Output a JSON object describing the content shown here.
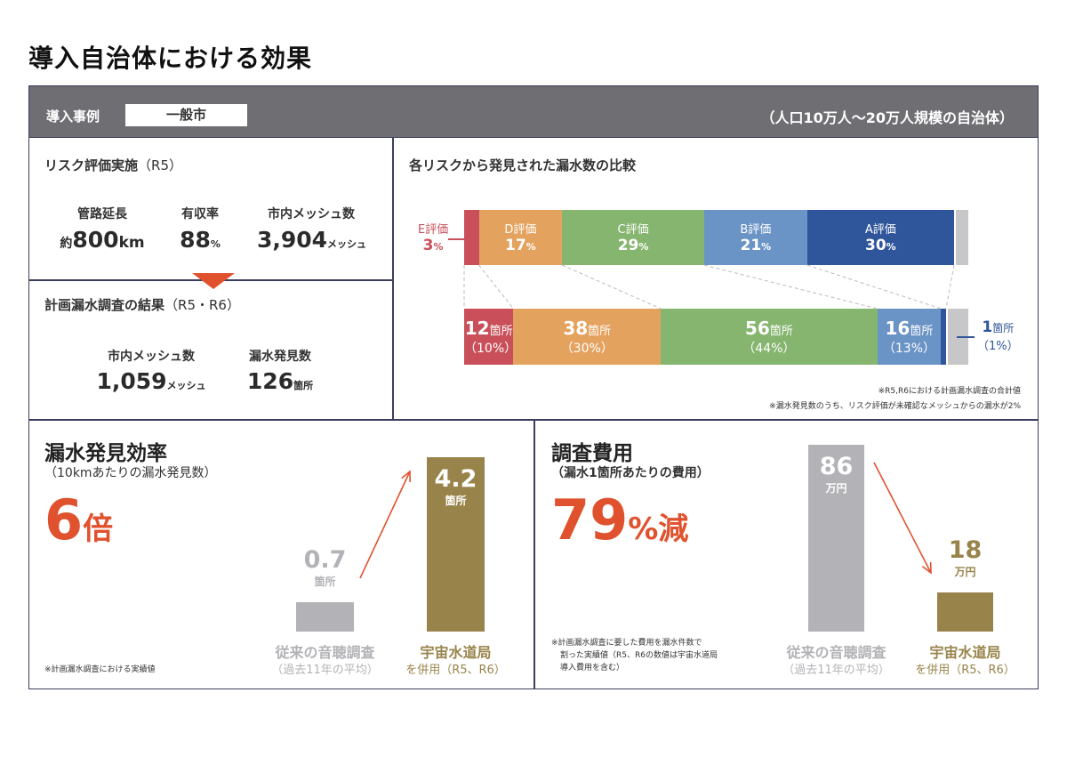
{
  "page_title": "導入自治体における効果",
  "header": {
    "label": "導入事例",
    "city": "一般市",
    "scale": "（人口10万人～20万人規模の自治体）"
  },
  "risk": {
    "title": "リスク評価実施",
    "title_paren": "（R5）",
    "stats": [
      {
        "label": "管路延長",
        "prefix": "約",
        "value": "800",
        "unit": "km"
      },
      {
        "label": "有収率",
        "prefix": "",
        "value": "88",
        "unit": "%"
      },
      {
        "label": "市内メッシュ数",
        "prefix": "",
        "value": "3,904",
        "unit": "メッシュ"
      }
    ]
  },
  "survey": {
    "title": "計画漏水調査の結果",
    "title_paren": "（R5・R6）",
    "stats": [
      {
        "label": "市内メッシュ数",
        "value": "1,059",
        "unit": "メッシュ"
      },
      {
        "label": "漏水発見数",
        "value": "126",
        "unit": "箇所"
      }
    ]
  },
  "chart_data": [
    {
      "type": "bar",
      "title": "各リスクから発見された漏水数の比較",
      "stacked": "horizontal-100",
      "top_bar": [
        {
          "name": "E評価",
          "value": 3,
          "color": "#c9505a"
        },
        {
          "name": "D評価",
          "value": 17,
          "color": "#e4a25f"
        },
        {
          "name": "C評価",
          "value": 29,
          "color": "#86b56f"
        },
        {
          "name": "B評価",
          "value": 21,
          "color": "#6a93c6"
        },
        {
          "name": "A評価",
          "value": 30,
          "color": "#2f559a"
        }
      ],
      "bottom_bar": [
        {
          "count": "12",
          "unit": "箇所",
          "pct": "（10%）",
          "value": 10,
          "color": "#c9505a"
        },
        {
          "count": "38",
          "unit": "箇所",
          "pct": "（30%）",
          "value": 30,
          "color": "#e4a25f"
        },
        {
          "count": "56",
          "unit": "箇所",
          "pct": "（44%）",
          "value": 44,
          "color": "#86b56f"
        },
        {
          "count": "16",
          "unit": "箇所",
          "pct": "（13%）",
          "value": 13,
          "color": "#6a93c6"
        },
        {
          "count": "1",
          "unit": "箇所",
          "pct": "（1%）",
          "value": 1,
          "color": "#2f559a"
        }
      ],
      "gray_pct": 2,
      "notes": [
        "※R5,R6における計画漏水調査の合計値",
        "※漏水発見数のうち、リスク評価が未確認なメッシュからの漏水が2%"
      ]
    },
    {
      "type": "bar",
      "title": "漏水発見効率",
      "subtitle": "（10kmあたりの漏水発見数）",
      "unit": "箇所",
      "values": [
        0.7,
        4.2
      ],
      "bar_values": [
        "0.7",
        "4.2"
      ],
      "categories": [
        "従来の音聴調査",
        "宇宙水道局"
      ],
      "sub_labels": [
        "（過去11年の平均）",
        "を併用（R5、R6）"
      ],
      "colors": [
        "#b3b2b6",
        "#98844b"
      ]
    },
    {
      "type": "bar",
      "title": "調査費用",
      "subtitle": "（漏水1箇所あたりの費用）",
      "unit": "万円",
      "values": [
        86,
        18
      ],
      "bar_values": [
        "86",
        "18"
      ],
      "categories": [
        "従来の音聴調査",
        "宇宙水道局"
      ],
      "sub_labels": [
        "（過去11年の平均）",
        "を併用（R5、R6）"
      ],
      "colors": [
        "#b3b2b6",
        "#98844b"
      ]
    }
  ],
  "efficiency": {
    "highlight_num": "6",
    "highlight_unit": "倍",
    "footnote": "※計画漏水調査における実績値"
  },
  "cost": {
    "highlight_num": "79",
    "highlight_unit": "%減",
    "footnote": [
      "※計画漏水調査に要した費用を漏水件数で",
      "割った実績値（R5、R6の数値は宇宙水道局",
      "導入費用を含む）"
    ]
  }
}
